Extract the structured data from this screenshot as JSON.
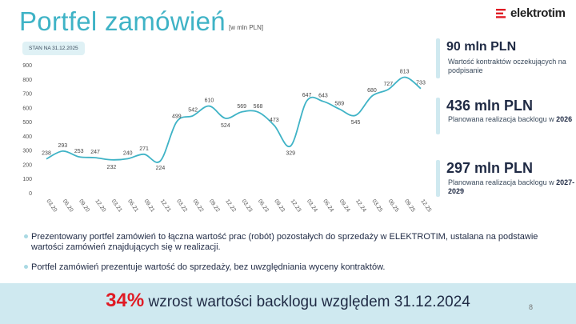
{
  "header": {
    "title": "Portfel zamówień",
    "unit": "[w mln PLN]",
    "logo_text": "elektrotim",
    "as_of": "STAN NA 31.12.2025"
  },
  "kpis": [
    {
      "value": "90 mln PLN",
      "desc": "Wartość kontraktów oczekujących na podpisanie",
      "emph": ""
    },
    {
      "value": "436 mln PLN",
      "desc": "Planowana realizacja backlogu w",
      "emph": "2026"
    },
    {
      "value": "297 mln PLN",
      "desc": "Planowana realizacja backlogu w",
      "emph": "2027-2029"
    }
  ],
  "notes": [
    "Prezentowany portfel zamówień to łączna wartość prac (robót) pozostałych do sprzedaży w ELEKTROTIM, ustalana na podstawie wartości zamówień znajdujących się w realizacji.",
    "Portfel zamówień prezentuje wartość do sprzedaży, bez uwzględniania wyceny kontraktów."
  ],
  "footer": {
    "highlight": "34%",
    "text": " wzrost wartości backlogu względem 31.12.2024",
    "page_number": "8"
  },
  "colors": {
    "accent": "#3fb3c6",
    "highlight": "#e01b24",
    "band": "#cfe9f0"
  },
  "chart_data": {
    "type": "line",
    "categories": [
      "03.20",
      "06.20",
      "09.20",
      "12.20",
      "03.21",
      "06.21",
      "09.21",
      "12.21",
      "03.22",
      "06.22",
      "09.22",
      "12.22",
      "03.23",
      "06.23",
      "09.23",
      "12.23",
      "03.24",
      "06.24",
      "09.24",
      "12.24",
      "03.25",
      "06.25",
      "09.25",
      "12.25"
    ],
    "values": [
      238,
      293,
      253,
      247,
      232,
      240,
      271,
      224,
      499,
      542,
      610,
      524,
      569,
      568,
      473,
      329,
      647,
      643,
      589,
      545,
      680,
      727,
      813,
      733
    ],
    "yticks": [
      0,
      100,
      200,
      300,
      400,
      500,
      600,
      700,
      800,
      900
    ],
    "ylim": [
      0,
      900
    ],
    "smooth": true,
    "grid": false,
    "data_labels": true,
    "line_color": "#3fb3c6"
  }
}
